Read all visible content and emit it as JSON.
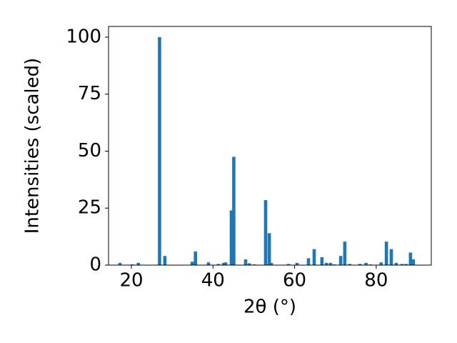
{
  "chart_data": {
    "type": "bar",
    "x_label": "2θ (°)",
    "y_label": "Intensities (scaled)",
    "x": [
      17.2,
      20.2,
      21.7,
      26.9,
      28.2,
      34.9,
      35.7,
      38.9,
      41.3,
      42.6,
      43.1,
      44.5,
      45.1,
      48.0,
      48.9,
      50.1,
      52.9,
      53.8,
      54.3,
      58.5,
      60.6,
      63.4,
      64.8,
      66.7,
      67.8,
      68.8,
      69.7,
      71.3,
      72.3,
      73.5,
      76.0,
      77.5,
      78.6,
      81.2,
      82.5,
      83.7,
      84.9,
      86.3,
      87.3,
      88.4,
      89.1
    ],
    "values": [
      1,
      0.3,
      1,
      100,
      4,
      1.5,
      6,
      1.2,
      0.5,
      1,
      1.2,
      24,
      47.5,
      2.5,
      0.8,
      0.3,
      28.5,
      14,
      1,
      0.5,
      1,
      3,
      7,
      3.5,
      1,
      1,
      0.3,
      4,
      10.3,
      0.5,
      0.5,
      1,
      0.3,
      1.2,
      10.3,
      7,
      1,
      0.5,
      0.5,
      5.5,
      2.5
    ],
    "color": "#1f77b4",
    "xlim": [
      14.4,
      93.5
    ],
    "xticks": [
      20,
      40,
      60,
      80
    ],
    "ylim": [
      0,
      104.7
    ],
    "yticks": [
      0,
      25,
      50,
      75,
      100
    ]
  }
}
